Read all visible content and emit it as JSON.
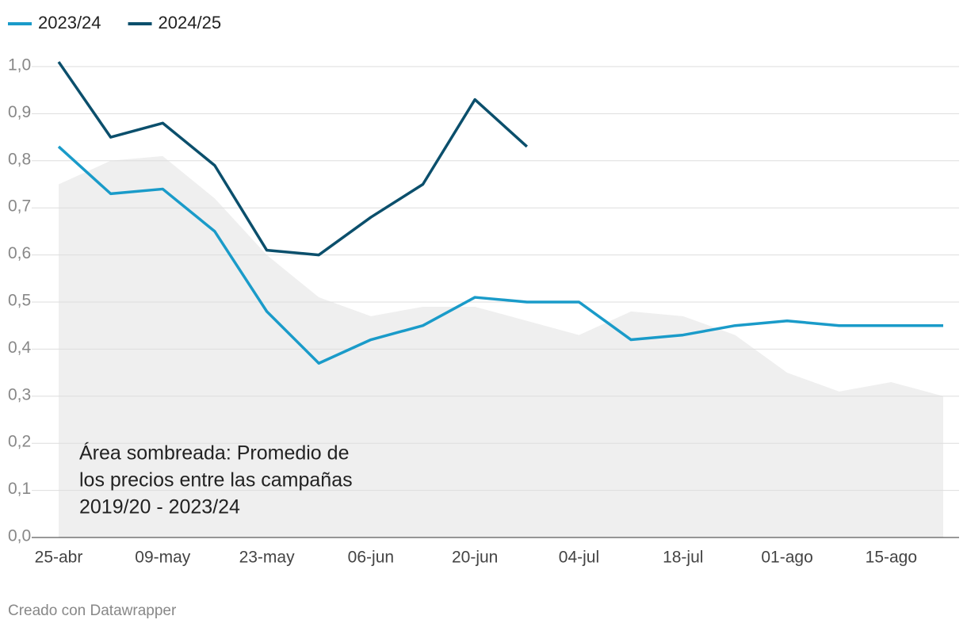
{
  "chart_data": {
    "type": "line",
    "categories": [
      "25-abr",
      null,
      "09-may",
      null,
      "23-may",
      null,
      "06-jun",
      null,
      "20-jun",
      null,
      "04-jul",
      null,
      "18-jul",
      null,
      "01-ago",
      null,
      "15-ago",
      null
    ],
    "series": [
      {
        "name": "2023/24",
        "color": "#1a9bc9",
        "values": [
          0.83,
          0.73,
          0.74,
          0.65,
          0.48,
          0.37,
          0.42,
          0.45,
          0.51,
          0.5,
          0.5,
          0.42,
          0.43,
          0.45,
          0.46,
          0.45,
          0.45,
          0.45
        ]
      },
      {
        "name": "2024/25",
        "color": "#0b4f6c",
        "values": [
          1.01,
          0.85,
          0.88,
          0.79,
          0.61,
          0.6,
          0.68,
          0.75,
          0.93,
          0.83,
          null,
          null,
          null,
          null,
          null,
          null,
          null,
          null
        ]
      }
    ],
    "area": {
      "color": "#efefef",
      "values": [
        0.75,
        0.8,
        0.81,
        0.72,
        0.6,
        0.51,
        0.47,
        0.49,
        0.49,
        0.46,
        0.43,
        0.48,
        0.47,
        0.43,
        0.35,
        0.31,
        0.33,
        0.3
      ]
    },
    "annotation": [
      "Área sombreada: Promedio de",
      "los precios entre las campañas",
      "2019/20 - 2023/24"
    ],
    "ylim": [
      0,
      1.05
    ],
    "yticks": [
      {
        "value": 0,
        "label": "0,0"
      },
      {
        "value": 0.1,
        "label": "0,1"
      },
      {
        "value": 0.2,
        "label": "0,2"
      },
      {
        "value": 0.3,
        "label": "0,3"
      },
      {
        "value": 0.4,
        "label": "0,4"
      },
      {
        "value": 0.5,
        "label": "0,5"
      },
      {
        "value": 0.6,
        "label": "0,6"
      },
      {
        "value": 0.7,
        "label": "0,7"
      },
      {
        "value": 0.8,
        "label": "0,8"
      },
      {
        "value": 0.9,
        "label": "0,9"
      },
      {
        "value": 1,
        "label": "1,0"
      }
    ],
    "grid": true,
    "legend": "top",
    "footer": "Creado con Datawrapper"
  }
}
